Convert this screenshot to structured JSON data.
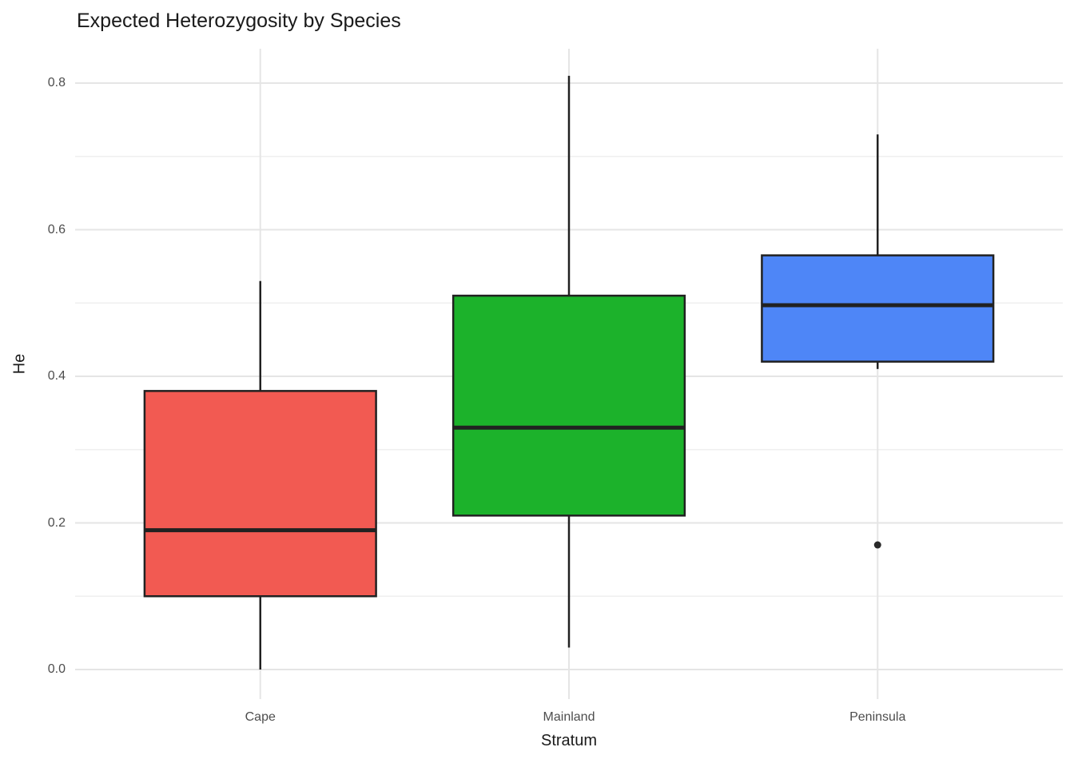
{
  "chart_data": {
    "type": "boxplot",
    "title": "Expected Heterozygosity by Species",
    "xlabel": "Stratum",
    "ylabel": "He",
    "categories": [
      "Cape",
      "Mainland",
      "Peninsula"
    ],
    "ytick_labels": [
      "0.0",
      "0.2",
      "0.4",
      "0.6",
      "0.8"
    ],
    "ytick_values": [
      0.0,
      0.2,
      0.4,
      0.6,
      0.8
    ],
    "yminor_values": [
      0.1,
      0.3,
      0.5,
      0.7
    ],
    "ylim": [
      0.0,
      0.8
    ],
    "grid": "horizontal major+minor light gray, vertical major at each category, white background",
    "legend": "none",
    "series": [
      {
        "name": "Cape",
        "fill": "#F25A52",
        "whisker_min": 0.0,
        "q1": 0.1,
        "median": 0.19,
        "q3": 0.38,
        "whisker_max": 0.53,
        "outliers": []
      },
      {
        "name": "Mainland",
        "fill": "#1CB22B",
        "whisker_min": 0.03,
        "q1": 0.21,
        "median": 0.33,
        "q3": 0.51,
        "whisker_max": 0.81,
        "outliers": []
      },
      {
        "name": "Peninsula",
        "fill": "#4E86F7",
        "whisker_min": 0.41,
        "q1": 0.42,
        "median": 0.497,
        "q3": 0.565,
        "whisker_max": 0.73,
        "outliers": [
          0.17
        ]
      }
    ],
    "colors": {
      "box_stroke": "#212121",
      "median": "#212121",
      "outlier": "#2a2a2a",
      "grid_major": "#e5e5e5",
      "grid_minor": "#efefef",
      "tick_label": "#4d4d4d",
      "title": "#1a1a1a",
      "background": "#ffffff"
    }
  }
}
